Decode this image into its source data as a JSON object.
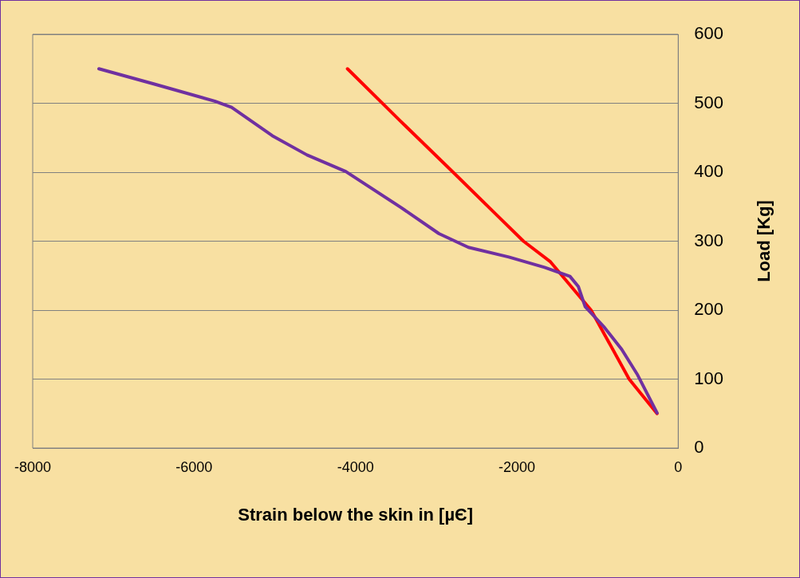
{
  "chart_data": {
    "type": "line",
    "xlabel": "Strain below the skin in [µЄ]",
    "ylabel": "Load [Kg]",
    "xlim": [
      -8000,
      0
    ],
    "xticks": [
      -8000,
      -6000,
      -4000,
      -2000,
      0
    ],
    "ylim": [
      0,
      600
    ],
    "yticks": [
      0,
      100,
      200,
      300,
      400,
      500,
      600
    ],
    "grid": "y",
    "marker": "none",
    "line_style": "solid",
    "series": [
      {
        "color": "#7030a0",
        "x": [
          -7180,
          -6500,
          -5744,
          -5535,
          -5031,
          -4600,
          -4120,
          -3438,
          -2966,
          -2600,
          -2100,
          -1656,
          -1342,
          -1237,
          -1153,
          -922,
          -700,
          -503,
          -262
        ],
        "values": [
          550,
          528,
          503,
          494,
          453,
          425,
          401,
          349,
          311,
          291,
          277,
          262,
          249,
          234,
          205,
          176,
          143,
          106,
          51
        ]
      },
      {
        "color": "#ff0000",
        "x": [
          -4099,
          -3450,
          -2790,
          -2250,
          -1918,
          -1583,
          -1080,
          -608,
          -262
        ],
        "values": [
          550,
          475,
          400,
          338,
          300,
          270,
          200,
          100,
          50
        ]
      }
    ]
  }
}
